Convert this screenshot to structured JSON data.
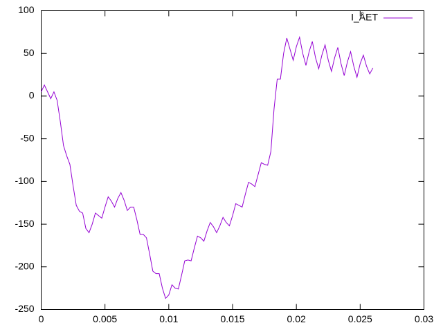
{
  "chart_data": {
    "type": "line",
    "x": [
      0,
      0.00025,
      0.0005,
      0.00075,
      0.001,
      0.00125,
      0.0015,
      0.00175,
      0.002,
      0.00225,
      0.0025,
      0.00275,
      0.003,
      0.00325,
      0.0035,
      0.00375,
      0.004,
      0.00425,
      0.0045,
      0.00475,
      0.005,
      0.00525,
      0.0055,
      0.00575,
      0.006,
      0.00625,
      0.0065,
      0.00675,
      0.007,
      0.00725,
      0.0075,
      0.00775,
      0.008,
      0.00825,
      0.0085,
      0.00875,
      0.009,
      0.00925,
      0.0095,
      0.00975,
      0.01,
      0.01025,
      0.0105,
      0.01075,
      0.011,
      0.01125,
      0.0115,
      0.01175,
      0.012,
      0.01225,
      0.0125,
      0.01275,
      0.013,
      0.01325,
      0.0135,
      0.01375,
      0.014,
      0.01425,
      0.0145,
      0.01475,
      0.015,
      0.01525,
      0.0155,
      0.01575,
      0.016,
      0.01625,
      0.0165,
      0.01675,
      0.017,
      0.01725,
      0.0175,
      0.01775,
      0.018,
      0.01825,
      0.0185,
      0.01875,
      0.019,
      0.01925,
      0.0195,
      0.01975,
      0.02,
      0.02025,
      0.0205,
      0.02075,
      0.021,
      0.02125,
      0.0215,
      0.02175,
      0.022,
      0.02225,
      0.0225,
      0.02275,
      0.023,
      0.02325,
      0.0235,
      0.02375,
      0.024,
      0.02425,
      0.0245,
      0.02475,
      0.025,
      0.02525,
      0.0255,
      0.02575,
      0.026
    ],
    "series": [
      {
        "name": "I_ÅET",
        "color": "#9400d3",
        "values": [
          5,
          13,
          5,
          -3,
          5,
          -5,
          -30,
          -58,
          -70,
          -80,
          -105,
          -128,
          -135,
          -137,
          -155,
          -160,
          -150,
          -137,
          -140,
          -143,
          -130,
          -118,
          -123,
          -130,
          -120,
          -113,
          -122,
          -134,
          -130,
          -130,
          -145,
          -162,
          -162,
          -166,
          -185,
          -205,
          -208,
          -208,
          -225,
          -237,
          -233,
          -221,
          -225,
          -226,
          -210,
          -193,
          -192,
          -193,
          -178,
          -164,
          -166,
          -170,
          -158,
          -148,
          -153,
          -160,
          -152,
          -142,
          -148,
          -152,
          -140,
          -126,
          -128,
          -130,
          -115,
          -101,
          -103,
          -106,
          -92,
          -78,
          -80,
          -81,
          -65,
          -15,
          20,
          20,
          50,
          68,
          55,
          42,
          58,
          69,
          50,
          36,
          52,
          64,
          45,
          32,
          48,
          60,
          42,
          29,
          45,
          57,
          38,
          24,
          40,
          52,
          35,
          22,
          38,
          48,
          35,
          26,
          33
        ]
      }
    ],
    "xlim": [
      0,
      0.03
    ],
    "xticks": [
      0,
      0.005,
      0.01,
      0.015,
      0.02,
      0.025,
      0.03
    ],
    "ylim": [
      -250,
      100
    ],
    "yticks": [
      -250,
      -200,
      -150,
      -100,
      -50,
      0,
      50,
      100
    ],
    "legend": "top-right"
  }
}
